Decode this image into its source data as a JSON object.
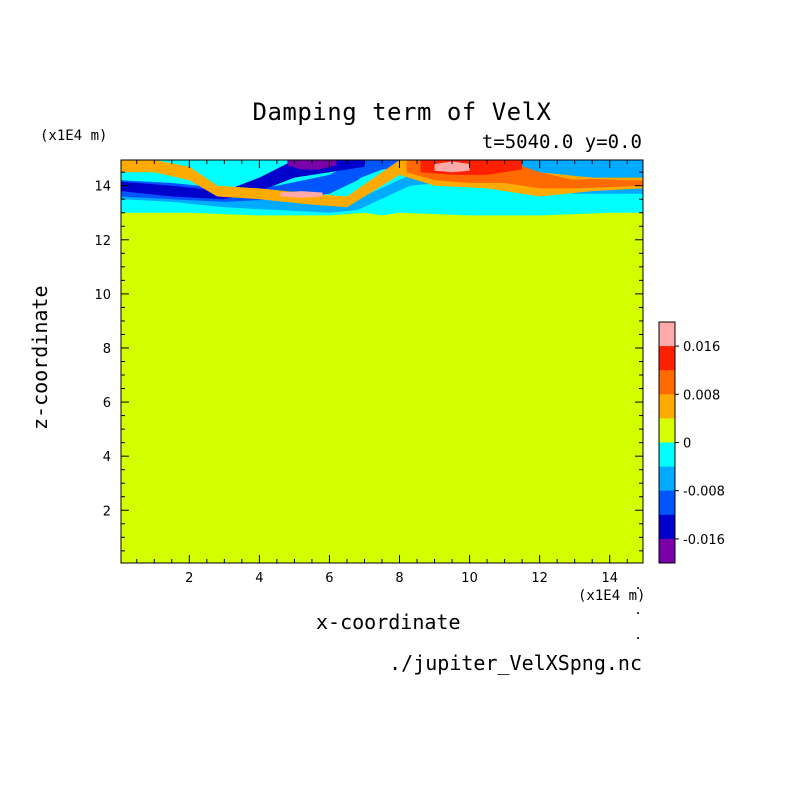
{
  "chart_data": {
    "type": "heatmap",
    "title": "Damping term of VelX",
    "subtitle": "t=5040.0 y=0.0",
    "xlabel": "x-coordinate",
    "ylabel": "z-coordinate",
    "x_multiplier": "(x1E4 m)",
    "y_multiplier": "(x1E4 m)",
    "source_file": "./jupiter_VelXSpng.nc",
    "xlim": [
      0.05,
      14.95
    ],
    "ylim": [
      0.05,
      14.95
    ],
    "x_ticks": [
      "2",
      "4",
      "6",
      "8",
      "10",
      "12",
      "14"
    ],
    "x_tick_values": [
      2,
      4,
      6,
      8,
      10,
      12,
      14
    ],
    "y_ticks": [
      "2",
      "4",
      "6",
      "8",
      "10",
      "12",
      "14"
    ],
    "y_tick_values": [
      2,
      4,
      6,
      8,
      10,
      12,
      14
    ],
    "background_value": 0,
    "background_color": "#d4ff00",
    "colorbar": {
      "levels": [
        {
          "color": "#ffaaaa"
        },
        {
          "color": "#ff2000"
        },
        {
          "color": "#ff6a00"
        },
        {
          "color": "#ffaa00"
        },
        {
          "color": "#d4ff00"
        },
        {
          "color": "#00ffff"
        },
        {
          "color": "#00aaff"
        },
        {
          "color": "#0055ff"
        },
        {
          "color": "#0000cc"
        },
        {
          "color": "#7a00aa"
        }
      ],
      "labels": [
        "0.016",
        "0.008",
        "0",
        "-0.008",
        "-0.016"
      ],
      "label_levels": [
        0.016,
        0.008,
        0,
        -0.008,
        -0.016
      ],
      "range": [
        -0.02,
        0.02
      ]
    },
    "bands": [
      {
        "color": "#00ffff",
        "x": [
          0.05,
          2.0,
          4.0,
          6.0,
          7.0,
          7.5,
          8.0,
          10.0,
          12.0,
          14.0,
          14.95
        ],
        "top": [
          14.95,
          14.95,
          14.95,
          14.95,
          14.95,
          14.95,
          14.95,
          14.95,
          14.95,
          14.95,
          14.95
        ],
        "bottom": [
          13.0,
          13.0,
          12.9,
          12.9,
          13.0,
          12.9,
          13.0,
          12.9,
          12.9,
          13.0,
          13.0
        ]
      },
      {
        "color": "#00aaff",
        "x": [
          0.05,
          1.5,
          3.0,
          4.5,
          6.0,
          6.8,
          8.3,
          10.0,
          11.5,
          13.0,
          14.95
        ],
        "top": [
          14.2,
          14.1,
          13.9,
          13.8,
          13.6,
          13.5,
          14.4,
          14.95,
          14.95,
          14.95,
          14.95
        ],
        "bottom": [
          13.5,
          13.4,
          13.2,
          13.1,
          13.0,
          13.1,
          14.0,
          14.2,
          14.0,
          13.7,
          13.7
        ]
      },
      {
        "color": "#0055ff",
        "x": [
          0.05,
          1.5,
          3.0,
          4.5,
          6.0,
          6.8,
          6.9,
          7.5,
          8.2,
          10.0,
          12.0,
          14.95
        ],
        "top": [
          14.2,
          14.1,
          13.9,
          14.0,
          14.4,
          14.95,
          14.95,
          14.95,
          14.95,
          14.95,
          14.95,
          14.95
        ],
        "bottom": [
          13.6,
          13.5,
          13.4,
          13.5,
          13.7,
          14.2,
          14.3,
          14.6,
          14.7,
          14.9,
          14.95,
          14.95
        ]
      },
      {
        "color": "#0000cc",
        "x": [
          0.05,
          1.5,
          3.0,
          4.0,
          5.0,
          6.0,
          7.0
        ],
        "top": [
          14.15,
          14.0,
          13.8,
          14.3,
          14.95,
          14.95,
          14.95
        ],
        "bottom": [
          13.8,
          13.6,
          13.5,
          13.8,
          14.3,
          14.5,
          14.7
        ]
      },
      {
        "color": "#7a00aa",
        "x": [
          4.8,
          5.2,
          5.7,
          6.2
        ],
        "top": [
          14.95,
          14.95,
          14.95,
          14.95
        ],
        "bottom": [
          14.75,
          14.6,
          14.6,
          14.75
        ]
      },
      {
        "color": "#ffaa00",
        "x": [
          0.05,
          1.0,
          2.0,
          2.8,
          4.0,
          5.5,
          6.5,
          8.0,
          9.0,
          10.5,
          12.0,
          13.5,
          14.95
        ],
        "top": [
          14.95,
          14.95,
          14.7,
          14.0,
          13.9,
          13.7,
          13.6,
          14.95,
          14.95,
          14.95,
          14.5,
          14.3,
          14.3
        ],
        "bottom": [
          14.5,
          14.5,
          14.2,
          13.6,
          13.5,
          13.3,
          13.2,
          14.4,
          14.0,
          13.9,
          13.6,
          13.8,
          13.9
        ]
      },
      {
        "color": "#ff6a00",
        "x": [
          8.2,
          9.0,
          10.0,
          11.0,
          12.0,
          13.0,
          14.95
        ],
        "top": [
          14.95,
          14.95,
          14.95,
          14.95,
          14.5,
          14.2,
          14.2
        ],
        "bottom": [
          14.5,
          14.2,
          14.1,
          14.1,
          13.9,
          13.9,
          14.0
        ]
      },
      {
        "color": "#ff2000",
        "x": [
          8.6,
          9.5,
          10.5,
          11.5
        ],
        "top": [
          14.95,
          14.95,
          14.95,
          14.95
        ],
        "bottom": [
          14.5,
          14.4,
          14.4,
          14.6
        ]
      },
      {
        "color": "#ffaaaa",
        "x": [
          9.0,
          9.5,
          10.0
        ],
        "top": [
          14.8,
          14.9,
          14.8
        ],
        "bottom": [
          14.55,
          14.5,
          14.55
        ]
      },
      {
        "color": "#ffaaaa",
        "x": [
          4.6,
          5.2,
          5.8
        ],
        "top": [
          13.75,
          13.8,
          13.75
        ],
        "bottom": [
          13.6,
          13.55,
          13.6
        ]
      },
      {
        "color": "#ff6a00",
        "x": [
          12.5,
          13.5,
          14.5
        ],
        "top": [
          14.2,
          14.25,
          14.2
        ],
        "bottom": [
          14.0,
          14.0,
          14.05
        ]
      }
    ]
  }
}
